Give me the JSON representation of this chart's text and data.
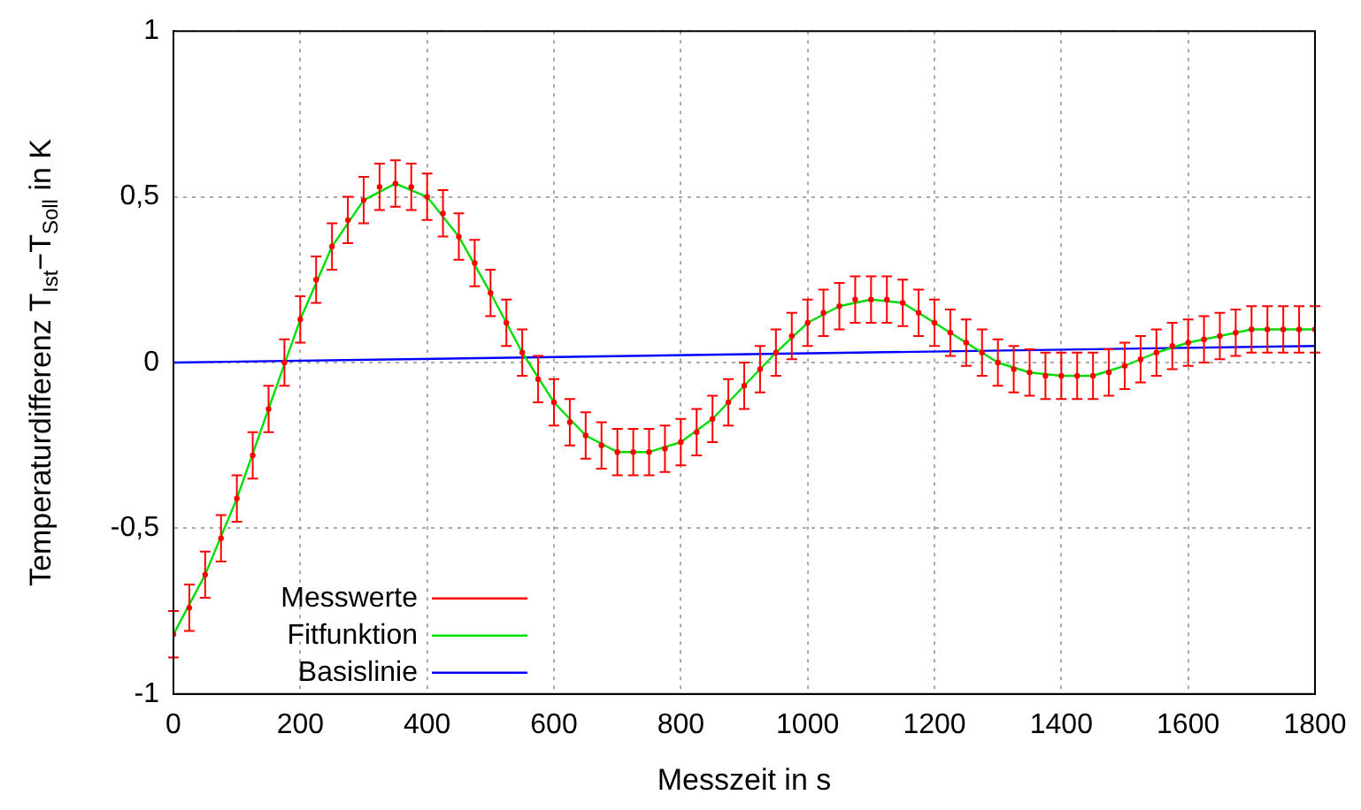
{
  "chart_data": {
    "type": "line",
    "xlabel": "Messzeit in s",
    "ylabel": "Temperaturdifferenz T$_{Ist}$−T$_{Soll}$ in K",
    "xlim": [
      0,
      1800
    ],
    "xticks": [
      0,
      200,
      400,
      600,
      800,
      1000,
      1200,
      1400,
      1600,
      1800
    ],
    "ylim": [
      -1,
      1
    ],
    "yticks": [
      -1,
      {
        "value": -0.5,
        "label": "-0,5"
      },
      0,
      {
        "value": 0.5,
        "label": "0,5"
      },
      1
    ],
    "grid": true,
    "legend": "bottom left",
    "series": [
      {
        "name": "Messwerte",
        "type": "scatter",
        "marker": "circle",
        "color": "#ff0000",
        "x": [
          0,
          25,
          50,
          75,
          100,
          125,
          150,
          175,
          200,
          225,
          250,
          275,
          300,
          325,
          350,
          375,
          400,
          425,
          450,
          475,
          500,
          525,
          550,
          575,
          600,
          625,
          650,
          675,
          700,
          725,
          750,
          775,
          800,
          825,
          850,
          875,
          900,
          925,
          950,
          975,
          1000,
          1025,
          1050,
          1075,
          1100,
          1125,
          1150,
          1175,
          1200,
          1225,
          1250,
          1275,
          1300,
          1325,
          1350,
          1375,
          1400,
          1425,
          1450,
          1475,
          1500,
          1525,
          1550,
          1575,
          1600,
          1625,
          1650,
          1675,
          1700,
          1725,
          1750,
          1775,
          1800
        ],
        "values": [
          -0.82,
          -0.74,
          -0.64,
          -0.53,
          -0.41,
          -0.28,
          -0.14,
          0.0,
          0.13,
          0.25,
          0.35,
          0.43,
          0.49,
          0.53,
          0.54,
          0.53,
          0.5,
          0.45,
          0.38,
          0.3,
          0.21,
          0.12,
          0.03,
          -0.05,
          -0.12,
          -0.18,
          -0.22,
          -0.25,
          -0.27,
          -0.27,
          -0.27,
          -0.26,
          -0.24,
          -0.21,
          -0.17,
          -0.12,
          -0.07,
          -0.02,
          0.03,
          0.08,
          0.12,
          0.15,
          0.17,
          0.19,
          0.19,
          0.19,
          0.18,
          0.15,
          0.12,
          0.09,
          0.06,
          0.03,
          0.0,
          -0.02,
          -0.03,
          -0.04,
          -0.04,
          -0.04,
          -0.04,
          -0.03,
          -0.01,
          0.01,
          0.03,
          0.05,
          0.06,
          0.07,
          0.08,
          0.09,
          0.1,
          0.1,
          0.1,
          0.1,
          0.1
        ],
        "errors": [
          0.07,
          0.07,
          0.07,
          0.07,
          0.07,
          0.07,
          0.07,
          0.07,
          0.07,
          0.07,
          0.07,
          0.07,
          0.07,
          0.07,
          0.07,
          0.07,
          0.07,
          0.07,
          0.07,
          0.07,
          0.07,
          0.07,
          0.07,
          0.07,
          0.07,
          0.07,
          0.07,
          0.07,
          0.07,
          0.07,
          0.07,
          0.07,
          0.07,
          0.07,
          0.07,
          0.07,
          0.07,
          0.07,
          0.07,
          0.07,
          0.07,
          0.07,
          0.07,
          0.07,
          0.07,
          0.07,
          0.07,
          0.07,
          0.07,
          0.07,
          0.07,
          0.07,
          0.07,
          0.07,
          0.07,
          0.07,
          0.07,
          0.07,
          0.07,
          0.07,
          0.07,
          0.07,
          0.07,
          0.07,
          0.07,
          0.07,
          0.07,
          0.07,
          0.07,
          0.07,
          0.07,
          0.07,
          0.07
        ]
      },
      {
        "name": "Fitfunktion",
        "type": "line",
        "color": "#00dd00",
        "x": [
          0,
          50,
          100,
          150,
          200,
          250,
          300,
          350,
          400,
          450,
          500,
          550,
          600,
          650,
          700,
          750,
          800,
          850,
          900,
          950,
          1000,
          1050,
          1100,
          1150,
          1200,
          1250,
          1300,
          1350,
          1400,
          1450,
          1500,
          1550,
          1600,
          1650,
          1700,
          1750,
          1800
        ],
        "values": [
          -0.82,
          -0.64,
          -0.41,
          -0.14,
          0.13,
          0.35,
          0.49,
          0.54,
          0.5,
          0.38,
          0.21,
          0.03,
          -0.12,
          -0.22,
          -0.27,
          -0.27,
          -0.24,
          -0.17,
          -0.07,
          0.03,
          0.12,
          0.17,
          0.19,
          0.18,
          0.12,
          0.06,
          0.0,
          -0.03,
          -0.04,
          -0.04,
          -0.01,
          0.03,
          0.06,
          0.08,
          0.1,
          0.1,
          0.1
        ]
      },
      {
        "name": "Basislinie",
        "type": "line",
        "color": "#0000ff",
        "x": [
          0,
          1800
        ],
        "values": [
          0,
          0.05
        ]
      }
    ]
  }
}
